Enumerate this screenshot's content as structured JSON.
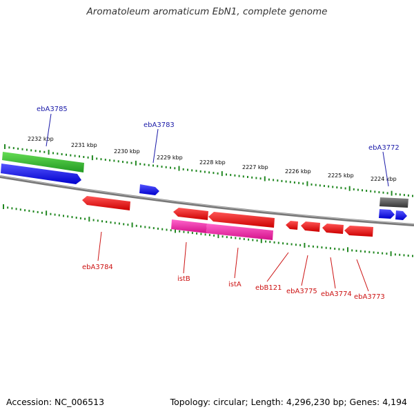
{
  "title": "Aromatoleum aromaticum EbN1, complete genome",
  "footer": {
    "accession": "Accession: NC_006513",
    "topology": "Topology: circular; Length: 4,296,230 bp; Genes: 4,194"
  },
  "scale_labels": [
    "2232 kbp",
    "2231 kbp",
    "2230 kbp",
    "2229 kbp",
    "2228 kbp",
    "2227 kbp",
    "2226 kbp",
    "2225 kbp",
    "2224 kbp"
  ],
  "forward_labels": [
    "ebA3785",
    "ebA3783",
    "ebA3772"
  ],
  "reverse_labels": [
    "ebA3784",
    "istB",
    "istA",
    "ebB121",
    "ebA3775",
    "ebA3774",
    "ebA3773"
  ],
  "colors": {
    "forward_gene": "#1111dd",
    "reverse_gene": "#dd1111",
    "insertion_element": "#e0199a",
    "feature_green": "#33bb33",
    "feature_gray": "#555555",
    "backbone": "#888888",
    "tick": "#228822",
    "forward_label": "#1a1aa8",
    "reverse_label": "#cc1111"
  }
}
